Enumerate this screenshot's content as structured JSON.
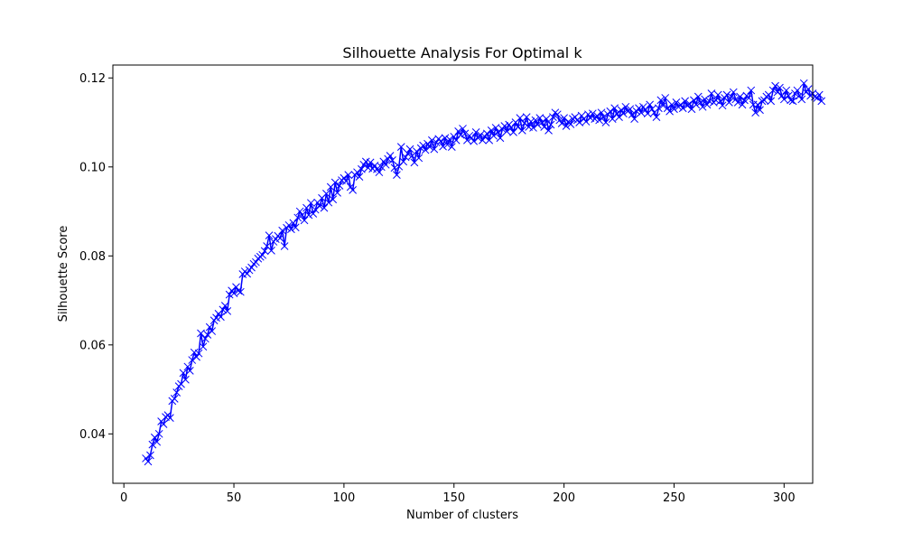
{
  "chart_data": {
    "type": "line",
    "title": "Silhouette Analysis For Optimal k",
    "xlabel": "Number of clusters",
    "ylabel": "Silhouette Score",
    "xlim": [
      -5,
      313
    ],
    "ylim": [
      0.0289,
      0.1229
    ],
    "xticks": [
      0,
      50,
      100,
      150,
      200,
      250,
      300
    ],
    "yticks": [
      0.04,
      0.06,
      0.08,
      0.1,
      0.12
    ],
    "ytick_labels": [
      "0.04",
      "0.06",
      "0.08",
      "0.10",
      "0.12"
    ],
    "grid": false,
    "marker": "x",
    "line_color": "#0000ff",
    "series": [
      {
        "x_start": 10,
        "x_step": 1,
        "values": [
          0.0345,
          0.0338,
          0.0352,
          0.0376,
          0.0392,
          0.0382,
          0.04,
          0.0428,
          0.0422,
          0.0438,
          0.0442,
          0.0436,
          0.0474,
          0.0479,
          0.0493,
          0.0507,
          0.0512,
          0.0537,
          0.0522,
          0.0551,
          0.0542,
          0.0566,
          0.0583,
          0.0573,
          0.0581,
          0.0626,
          0.0596,
          0.0614,
          0.0623,
          0.064,
          0.0631,
          0.0655,
          0.0661,
          0.067,
          0.0663,
          0.0679,
          0.0688,
          0.0676,
          0.0713,
          0.0722,
          0.0716,
          0.073,
          0.0722,
          0.0719,
          0.0759,
          0.0765,
          0.076,
          0.0768,
          0.0774,
          0.0782,
          0.0786,
          0.0794,
          0.0798,
          0.0802,
          0.0811,
          0.0822,
          0.0846,
          0.0812,
          0.0832,
          0.0838,
          0.0845,
          0.084,
          0.0857,
          0.0822,
          0.0863,
          0.0869,
          0.086,
          0.0874,
          0.0864,
          0.0886,
          0.09,
          0.0892,
          0.088,
          0.0908,
          0.0892,
          0.0919,
          0.0895,
          0.0904,
          0.092,
          0.0912,
          0.093,
          0.0908,
          0.094,
          0.092,
          0.0955,
          0.0927,
          0.0965,
          0.0942,
          0.0958,
          0.097,
          0.0975,
          0.0968,
          0.0982,
          0.0955,
          0.0948,
          0.0982,
          0.0988,
          0.0978,
          0.0995,
          0.1005,
          0.1012,
          0.0998,
          0.101,
          0.0996,
          0.1003,
          0.0995,
          0.0988,
          0.1,
          0.1012,
          0.1005,
          0.1018,
          0.1025,
          0.1015,
          0.0998,
          0.0982,
          0.1001,
          0.1045,
          0.1012,
          0.1022,
          0.103,
          0.104,
          0.1025,
          0.101,
          0.1035,
          0.102,
          0.1042,
          0.1048,
          0.1038,
          0.1052,
          0.1045,
          0.106,
          0.104,
          0.1055,
          0.1063,
          0.1058,
          0.1046,
          0.1065,
          0.105,
          0.1062,
          0.1045,
          0.1068,
          0.106,
          0.108,
          0.1072,
          0.1086,
          0.1075,
          0.106,
          0.107,
          0.1065,
          0.1058,
          0.1078,
          0.1065,
          0.1072,
          0.106,
          0.1068,
          0.1075,
          0.106,
          0.1082,
          0.107,
          0.1088,
          0.1078,
          0.1065,
          0.1085,
          0.1092,
          0.108,
          0.1095,
          0.1088,
          0.1078,
          0.11,
          0.109,
          0.111,
          0.1082,
          0.1098,
          0.1112,
          0.109,
          0.1102,
          0.1088,
          0.1105,
          0.1095,
          0.111,
          0.11,
          0.109,
          0.1108,
          0.1082,
          0.1095,
          0.1112,
          0.1122,
          0.1118,
          0.1105,
          0.1098,
          0.111,
          0.1092,
          0.1102,
          0.1096,
          0.1108,
          0.1112,
          0.1105,
          0.11,
          0.1115,
          0.1108,
          0.1102,
          0.1118,
          0.111,
          0.112,
          0.1108,
          0.1115,
          0.1105,
          0.1122,
          0.1112,
          0.11,
          0.1118,
          0.1125,
          0.1108,
          0.1132,
          0.112,
          0.1112,
          0.1128,
          0.112,
          0.1135,
          0.1125,
          0.113,
          0.1118,
          0.1108,
          0.1125,
          0.1132,
          0.1122,
          0.1135,
          0.1128,
          0.112,
          0.114,
          0.113,
          0.1122,
          0.1112,
          0.1132,
          0.115,
          0.1138,
          0.1155,
          0.1132,
          0.1125,
          0.114,
          0.113,
          0.1145,
          0.1135,
          0.114,
          0.1132,
          0.1148,
          0.1138,
          0.1142,
          0.113,
          0.115,
          0.114,
          0.1158,
          0.1145,
          0.1135,
          0.1152,
          0.114,
          0.1148,
          0.1165,
          0.1145,
          0.115,
          0.1162,
          0.1148,
          0.1138,
          0.1155,
          0.1162,
          0.1145,
          0.1158,
          0.1168,
          0.1152,
          0.1145,
          0.1158,
          0.114,
          0.115,
          0.116,
          0.1155,
          0.1172,
          0.114,
          0.1122,
          0.114,
          0.1128,
          0.1148,
          0.115,
          0.1158,
          0.1162,
          0.1148,
          0.1172,
          0.1182,
          0.1168,
          0.1178,
          0.116,
          0.1152,
          0.1172,
          0.116,
          0.115,
          0.1148,
          0.1165,
          0.1172,
          0.116,
          0.1152,
          0.1188,
          0.1168,
          0.1175,
          0.116,
          0.1165,
          0.1158,
          0.1155,
          0.1162,
          0.1148
        ]
      }
    ]
  }
}
